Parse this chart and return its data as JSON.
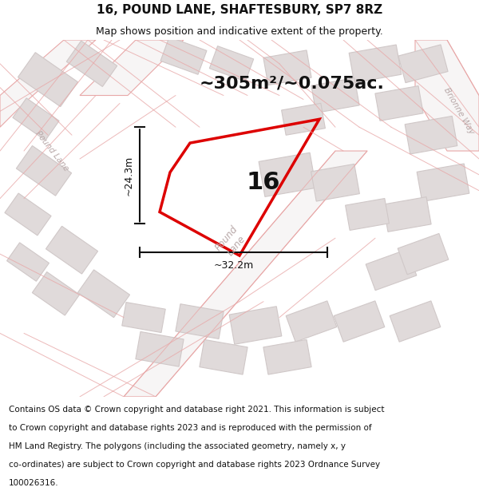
{
  "title": "16, POUND LANE, SHAFTESBURY, SP7 8RZ",
  "subtitle": "Map shows position and indicative extent of the property.",
  "area_text": "~305m²/~0.075ac.",
  "label_number": "16",
  "dim_vertical": "~24.3m",
  "dim_horizontal": "~32.2m",
  "footer_lines": [
    "Contains OS data © Crown copyright and database right 2021. This information is subject",
    "to Crown copyright and database rights 2023 and is reproduced with the permission of",
    "HM Land Registry. The polygons (including the associated geometry, namely x, y",
    "co-ordinates) are subject to Crown copyright and database rights 2023 Ordnance Survey",
    "100026316."
  ],
  "map_bg": "#f7f5f5",
  "building_fill": "#e0dada",
  "building_edge": "#d0c8c8",
  "road_outline_color": "#e8a8a8",
  "road_fill_color": "#f0e4e4",
  "plot_color": "#dd0000",
  "dim_color": "#111111",
  "text_color": "#111111",
  "road_label_color": "#b8a8a8",
  "title_fontsize": 11,
  "subtitle_fontsize": 9,
  "area_fontsize": 16,
  "number_fontsize": 22,
  "dim_fontsize": 9,
  "footer_fontsize": 7.5
}
